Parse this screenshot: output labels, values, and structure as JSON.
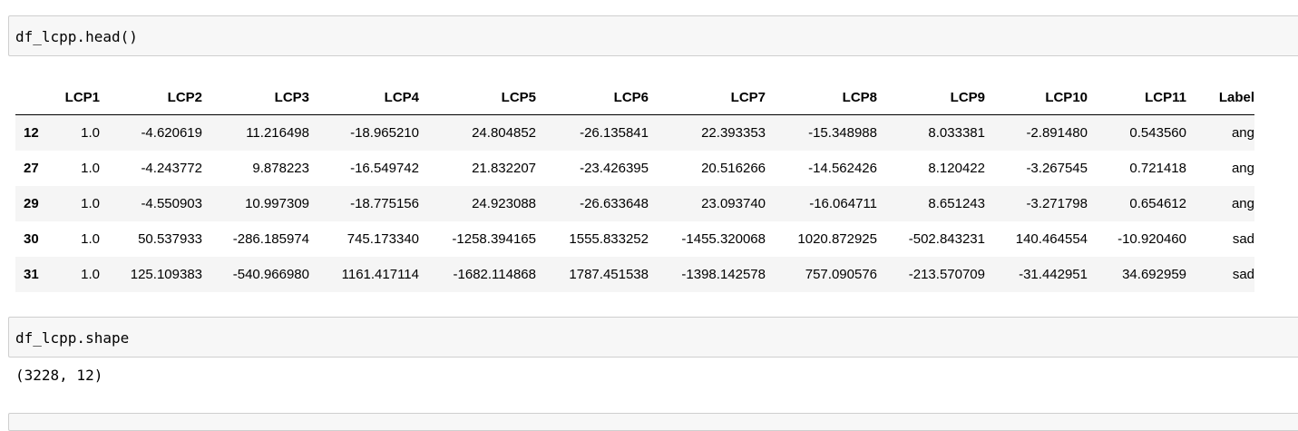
{
  "cells": {
    "cell1_code": "df_lcpp.head()",
    "cell2_code": "df_lcpp.shape",
    "cell2_output": "(3228, 12)"
  },
  "table": {
    "columns": [
      "",
      "LCP1",
      "LCP2",
      "LCP3",
      "LCP4",
      "LCP5",
      "LCP6",
      "LCP7",
      "LCP8",
      "LCP9",
      "LCP10",
      "LCP11",
      "Label"
    ],
    "rows": [
      {
        "index": "12",
        "values": [
          "1.0",
          "-4.620619",
          "11.216498",
          "-18.965210",
          "24.804852",
          "-26.135841",
          "22.393353",
          "-15.348988",
          "8.033381",
          "-2.891480",
          "0.543560",
          "ang"
        ]
      },
      {
        "index": "27",
        "values": [
          "1.0",
          "-4.243772",
          "9.878223",
          "-16.549742",
          "21.832207",
          "-23.426395",
          "20.516266",
          "-14.562426",
          "8.120422",
          "-3.267545",
          "0.721418",
          "ang"
        ]
      },
      {
        "index": "29",
        "values": [
          "1.0",
          "-4.550903",
          "10.997309",
          "-18.775156",
          "24.923088",
          "-26.633648",
          "23.093740",
          "-16.064711",
          "8.651243",
          "-3.271798",
          "0.654612",
          "ang"
        ]
      },
      {
        "index": "30",
        "values": [
          "1.0",
          "50.537933",
          "-286.185974",
          "745.173340",
          "-1258.394165",
          "1555.833252",
          "-1455.320068",
          "1020.872925",
          "-502.843231",
          "140.464554",
          "-10.920460",
          "sad"
        ]
      },
      {
        "index": "31",
        "values": [
          "1.0",
          "125.109383",
          "-540.966980",
          "1161.417114",
          "-1682.114868",
          "1787.451538",
          "-1398.142578",
          "757.090576",
          "-213.570709",
          "-31.442951",
          "34.692959",
          "sad"
        ]
      }
    ]
  }
}
